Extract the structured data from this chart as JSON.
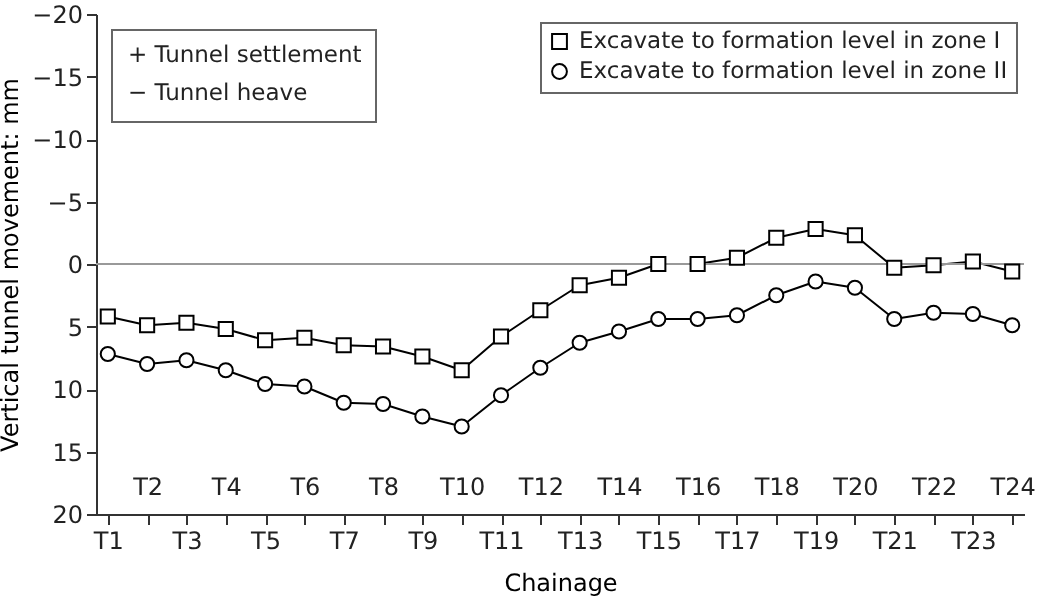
{
  "chart_data": {
    "type": "line",
    "xlabel": "Chainage",
    "ylabel": "Vertical tunnel movement: mm",
    "categories": [
      "T1",
      "T2",
      "T3",
      "T4",
      "T5",
      "T6",
      "T7",
      "T8",
      "T9",
      "T10",
      "T11",
      "T12",
      "T13",
      "T14",
      "T15",
      "T16",
      "T17",
      "T18",
      "T19",
      "T20",
      "T21",
      "T22",
      "T23",
      "T24"
    ],
    "series": [
      {
        "name": "Excavate to formation level in zone I",
        "color": "#000000",
        "marker": "square",
        "values": [
          4.2,
          4.9,
          4.7,
          5.2,
          6.1,
          5.9,
          6.5,
          6.6,
          7.4,
          8.5,
          5.8,
          3.7,
          1.7,
          1.1,
          0,
          0,
          -0.5,
          -2.1,
          -2.8,
          -2.3,
          0.3,
          0.1,
          -0.2,
          0.6
        ]
      },
      {
        "name": "Excavate to formation level in zone II",
        "color": "#000000",
        "marker": "circle",
        "values": [
          7.2,
          8.0,
          7.7,
          8.5,
          9.6,
          9.8,
          11.1,
          11.2,
          12.2,
          13.0,
          10.5,
          8.3,
          6.3,
          5.4,
          4.4,
          4.4,
          4.1,
          2.5,
          1.4,
          1.9,
          4.4,
          3.9,
          4.0,
          4.9
        ]
      }
    ],
    "ylim": [
      20,
      -20
    ],
    "yticks": [
      -20,
      -15,
      -10,
      -5,
      0,
      5,
      10,
      15,
      20
    ],
    "ref_lines": [
      {
        "axis": "y",
        "value": 0,
        "color": "#999999"
      }
    ],
    "legend": "top right",
    "grid": false,
    "line_style": "solid",
    "annotations": [
      "+ Tunnel settlement",
      "− Tunnel heave"
    ]
  }
}
